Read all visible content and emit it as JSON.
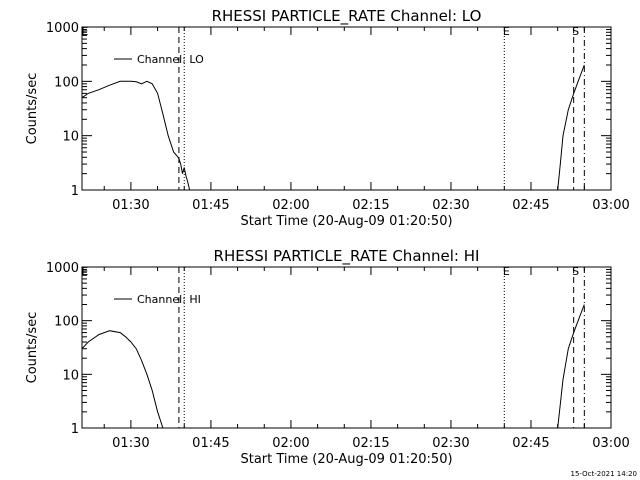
{
  "footer_timestamp": "15-Oct-2021 14:20",
  "chart_data": [
    {
      "type": "line",
      "title": "RHESSI PARTICLE_RATE Channel: LO",
      "xlabel": "Start Time (20-Aug-09 01:20:50)",
      "ylabel": "Counts/sec",
      "yscale": "log",
      "ylim": [
        1,
        1000
      ],
      "xlim": [
        "01:20:50",
        "03:00:00"
      ],
      "x_ticks": [
        "01:30",
        "01:45",
        "02:00",
        "02:15",
        "02:30",
        "02:45",
        "03:00"
      ],
      "y_ticks": [
        "1",
        "10",
        "100",
        "1000"
      ],
      "legend": {
        "position": "top-left",
        "entries": [
          "Channel: LO"
        ]
      },
      "markers": [
        {
          "label": "E",
          "time": "01:21",
          "style": "none"
        },
        {
          "label": "",
          "time": "01:39",
          "style": "dashed"
        },
        {
          "label": "",
          "time": "01:40",
          "style": "dotted"
        },
        {
          "label": "E",
          "time": "02:40",
          "style": "dotted"
        },
        {
          "label": "S",
          "time": "02:53",
          "style": "dashed"
        },
        {
          "label": "",
          "time": "02:55",
          "style": "dashdot"
        }
      ],
      "series": [
        {
          "segments": [
            {
              "x": [
                "01:20:50",
                "01:22",
                "01:24",
                "01:26",
                "01:28",
                "01:30",
                "01:31",
                "01:32",
                "01:33",
                "01:34",
                "01:35",
                "01:36",
                "01:37",
                "01:38",
                "01:38:40",
                "01:39",
                "01:39:20",
                "01:39:40",
                "01:40",
                "01:40:20",
                "01:40:40",
                "01:41",
                "01:41:20"
              ],
              "y": [
                50,
                60,
                70,
                85,
                100,
                100,
                98,
                90,
                100,
                90,
                60,
                25,
                10,
                5,
                4.2,
                3.8,
                3.0,
                2.0,
                2.6,
                1.8,
                1.4,
                1.0,
                1.0
              ]
            },
            {
              "x": [
                "02:50",
                "02:50:30",
                "02:51",
                "02:52",
                "02:53",
                "02:54",
                "02:55"
              ],
              "y": [
                1,
                3,
                10,
                30,
                60,
                110,
                200
              ]
            }
          ]
        }
      ]
    },
    {
      "type": "line",
      "title": "RHESSI PARTICLE_RATE Channel: HI",
      "xlabel": "Start Time (20-Aug-09 01:20:50)",
      "ylabel": "Counts/sec",
      "yscale": "log",
      "ylim": [
        1,
        1000
      ],
      "xlim": [
        "01:20:50",
        "03:00:00"
      ],
      "x_ticks": [
        "01:30",
        "01:45",
        "02:00",
        "02:15",
        "02:30",
        "02:45",
        "03:00"
      ],
      "y_ticks": [
        "1",
        "10",
        "100",
        "1000"
      ],
      "legend": {
        "position": "top-left",
        "entries": [
          "Channel: HI"
        ]
      },
      "markers": [
        {
          "label": "E",
          "time": "01:21",
          "style": "none"
        },
        {
          "label": "",
          "time": "01:39",
          "style": "dashed"
        },
        {
          "label": "",
          "time": "01:40",
          "style": "dotted"
        },
        {
          "label": "E",
          "time": "02:40",
          "style": "dotted"
        },
        {
          "label": "S",
          "time": "02:53",
          "style": "dashed"
        },
        {
          "label": "",
          "time": "02:55",
          "style": "dashdot"
        }
      ],
      "series": [
        {
          "segments": [
            {
              "x": [
                "01:20:50",
                "01:22",
                "01:24",
                "01:26",
                "01:28",
                "01:29",
                "01:30",
                "01:31",
                "01:32",
                "01:33",
                "01:34",
                "01:35",
                "01:36"
              ],
              "y": [
                30,
                40,
                55,
                65,
                60,
                50,
                40,
                30,
                18,
                10,
                5,
                2,
                1
              ]
            },
            {
              "x": [
                "02:50",
                "02:51",
                "02:52",
                "02:53",
                "02:54",
                "02:55"
              ],
              "y": [
                1,
                8,
                30,
                60,
                110,
                200
              ]
            }
          ]
        }
      ]
    }
  ]
}
